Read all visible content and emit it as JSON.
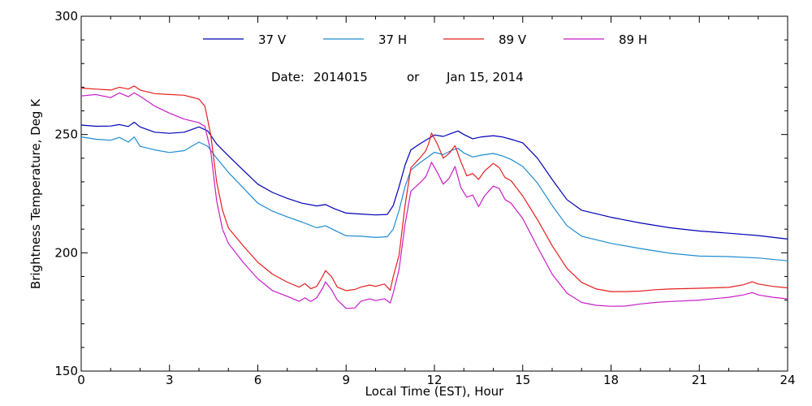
{
  "chart_data": {
    "type": "line",
    "title": "",
    "subtitle": {
      "date_prefix": "Date:",
      "date_code": "2014015",
      "conj": "or",
      "date_text": "Jan 15, 2014"
    },
    "xlabel": "Local Time (EST), Hour",
    "ylabel": "Brightness Temperature, Deg K",
    "xlim": [
      0,
      24
    ],
    "ylim": [
      150,
      300
    ],
    "xticks": [
      0,
      3,
      6,
      9,
      12,
      15,
      18,
      21,
      24
    ],
    "yticks": [
      150,
      200,
      250,
      300
    ],
    "xtick_labels": [
      "0",
      "3",
      "6",
      "9",
      "12",
      "15",
      "18",
      "21",
      "24"
    ],
    "ytick_labels": [
      "150",
      "200",
      "250",
      "300"
    ],
    "grid": false,
    "legend_position": "top",
    "series": [
      {
        "name": "37 V",
        "color": "#0000b4",
        "points": [
          [
            0,
            254
          ],
          [
            0.5,
            253.5
          ],
          [
            1,
            253.6
          ],
          [
            1.3,
            254.2
          ],
          [
            1.6,
            253.4
          ],
          [
            1.8,
            255.2
          ],
          [
            2,
            253.2
          ],
          [
            2.5,
            251
          ],
          [
            3,
            250.5
          ],
          [
            3.5,
            251
          ],
          [
            4,
            253.2
          ],
          [
            4.3,
            251.5
          ],
          [
            4.6,
            246
          ],
          [
            5,
            241
          ],
          [
            5.5,
            235
          ],
          [
            6,
            229
          ],
          [
            6.5,
            225.5
          ],
          [
            7,
            223
          ],
          [
            7.5,
            221
          ],
          [
            8,
            219.8
          ],
          [
            8.3,
            220.4
          ],
          [
            8.6,
            218.6
          ],
          [
            9,
            216.8
          ],
          [
            9.5,
            216.4
          ],
          [
            10,
            216
          ],
          [
            10.4,
            216.2
          ],
          [
            10.6,
            220
          ],
          [
            10.8,
            228
          ],
          [
            11,
            237
          ],
          [
            11.2,
            243.5
          ],
          [
            11.5,
            246
          ],
          [
            12,
            249.8
          ],
          [
            12.3,
            249.2
          ],
          [
            12.6,
            250.6
          ],
          [
            12.8,
            251.5
          ],
          [
            13,
            250
          ],
          [
            13.3,
            248.2
          ],
          [
            13.6,
            249
          ],
          [
            14,
            249.5
          ],
          [
            14.3,
            249
          ],
          [
            14.6,
            248
          ],
          [
            15,
            246.5
          ],
          [
            15.5,
            240
          ],
          [
            16,
            231
          ],
          [
            16.5,
            222.5
          ],
          [
            17,
            218
          ],
          [
            18,
            215
          ],
          [
            19,
            212.6
          ],
          [
            20,
            210.6
          ],
          [
            21,
            209.2
          ],
          [
            22,
            208.3
          ],
          [
            23,
            207.3
          ],
          [
            24,
            205.8
          ]
        ]
      },
      {
        "name": "37 H",
        "color": "#1e8cd2",
        "points": [
          [
            0,
            249
          ],
          [
            0.5,
            248
          ],
          [
            1,
            247.6
          ],
          [
            1.3,
            248.8
          ],
          [
            1.6,
            246.8
          ],
          [
            1.8,
            249
          ],
          [
            2,
            245
          ],
          [
            2.5,
            243.5
          ],
          [
            3,
            242.4
          ],
          [
            3.5,
            243.2
          ],
          [
            4,
            246.8
          ],
          [
            4.3,
            245
          ],
          [
            4.6,
            240
          ],
          [
            5,
            234
          ],
          [
            5.5,
            227.5
          ],
          [
            6,
            221
          ],
          [
            6.5,
            217.6
          ],
          [
            7,
            215.2
          ],
          [
            7.5,
            213
          ],
          [
            8,
            210.6
          ],
          [
            8.3,
            211.4
          ],
          [
            8.6,
            209.6
          ],
          [
            9,
            207.2
          ],
          [
            9.5,
            207
          ],
          [
            10,
            206.5
          ],
          [
            10.4,
            206.8
          ],
          [
            10.6,
            210
          ],
          [
            10.8,
            218
          ],
          [
            11,
            228
          ],
          [
            11.2,
            235
          ],
          [
            11.5,
            238
          ],
          [
            12,
            242.5
          ],
          [
            12.3,
            241.5
          ],
          [
            12.6,
            243.4
          ],
          [
            12.8,
            244.2
          ],
          [
            13,
            242.2
          ],
          [
            13.3,
            240.5
          ],
          [
            13.6,
            241.3
          ],
          [
            14,
            242
          ],
          [
            14.3,
            241
          ],
          [
            14.6,
            239.5
          ],
          [
            15,
            236.5
          ],
          [
            15.5,
            229.5
          ],
          [
            16,
            220
          ],
          [
            16.5,
            211.5
          ],
          [
            17,
            207
          ],
          [
            18,
            204
          ],
          [
            19,
            201.8
          ],
          [
            20,
            199.8
          ],
          [
            21,
            198.6
          ],
          [
            22,
            198.4
          ],
          [
            23,
            197.8
          ],
          [
            24,
            196.6
          ]
        ]
      },
      {
        "name": "89 V",
        "color": "#e61e1e",
        "points": [
          [
            0,
            269.6
          ],
          [
            0.5,
            269.2
          ],
          [
            1,
            268.8
          ],
          [
            1.3,
            270
          ],
          [
            1.6,
            269.2
          ],
          [
            1.8,
            270.5
          ],
          [
            2,
            268.8
          ],
          [
            2.5,
            267.3
          ],
          [
            3,
            266.9
          ],
          [
            3.5,
            266.6
          ],
          [
            4,
            265
          ],
          [
            4.2,
            262
          ],
          [
            4.4,
            250
          ],
          [
            4.6,
            230
          ],
          [
            4.8,
            218
          ],
          [
            5,
            210.5
          ],
          [
            5.5,
            203
          ],
          [
            6,
            196
          ],
          [
            6.5,
            191
          ],
          [
            7,
            187.6
          ],
          [
            7.4,
            185.5
          ],
          [
            7.6,
            187
          ],
          [
            7.8,
            184.8
          ],
          [
            8,
            185.8
          ],
          [
            8.2,
            190
          ],
          [
            8.3,
            192.5
          ],
          [
            8.5,
            190
          ],
          [
            8.7,
            185.5
          ],
          [
            9,
            184
          ],
          [
            9.3,
            184.5
          ],
          [
            9.5,
            185.5
          ],
          [
            9.8,
            186.4
          ],
          [
            10,
            185.8
          ],
          [
            10.3,
            186.8
          ],
          [
            10.5,
            184.2
          ],
          [
            10.6,
            190
          ],
          [
            10.8,
            199
          ],
          [
            11,
            220
          ],
          [
            11.2,
            236
          ],
          [
            11.5,
            240
          ],
          [
            11.7,
            243
          ],
          [
            11.8,
            246
          ],
          [
            11.9,
            250.6
          ],
          [
            12.1,
            246
          ],
          [
            12.3,
            240
          ],
          [
            12.5,
            242
          ],
          [
            12.7,
            245.3
          ],
          [
            12.9,
            238.5
          ],
          [
            13.1,
            232.5
          ],
          [
            13.3,
            233.5
          ],
          [
            13.5,
            231
          ],
          [
            13.7,
            234.5
          ],
          [
            14,
            237.8
          ],
          [
            14.2,
            236
          ],
          [
            14.4,
            231.8
          ],
          [
            14.6,
            230.5
          ],
          [
            15,
            224
          ],
          [
            15.5,
            214
          ],
          [
            16,
            203
          ],
          [
            16.5,
            193.5
          ],
          [
            17,
            187.5
          ],
          [
            17.5,
            184.7
          ],
          [
            18,
            183.6
          ],
          [
            18.5,
            183.6
          ],
          [
            19,
            183.8
          ],
          [
            19.5,
            184.4
          ],
          [
            20,
            184.7
          ],
          [
            21,
            185
          ],
          [
            22,
            185.4
          ],
          [
            22.5,
            186.5
          ],
          [
            22.8,
            187.8
          ],
          [
            23,
            186.8
          ],
          [
            23.5,
            185.8
          ],
          [
            24,
            185.2
          ]
        ]
      },
      {
        "name": "89 H",
        "color": "#c81ec8",
        "points": [
          [
            0,
            266.3
          ],
          [
            0.5,
            266.9
          ],
          [
            1,
            265.6
          ],
          [
            1.3,
            267.6
          ],
          [
            1.6,
            266
          ],
          [
            1.8,
            267.6
          ],
          [
            2,
            266.2
          ],
          [
            2.5,
            262
          ],
          [
            3,
            259
          ],
          [
            3.5,
            256.5
          ],
          [
            4,
            255
          ],
          [
            4.2,
            253.5
          ],
          [
            4.4,
            243
          ],
          [
            4.6,
            222
          ],
          [
            4.8,
            210
          ],
          [
            5,
            204
          ],
          [
            5.5,
            196
          ],
          [
            6,
            189
          ],
          [
            6.5,
            184
          ],
          [
            7,
            181.6
          ],
          [
            7.4,
            179.5
          ],
          [
            7.6,
            181
          ],
          [
            7.8,
            179.4
          ],
          [
            8,
            181
          ],
          [
            8.2,
            185
          ],
          [
            8.3,
            187.7
          ],
          [
            8.5,
            184.5
          ],
          [
            8.7,
            180
          ],
          [
            9,
            176.5
          ],
          [
            9.3,
            176.7
          ],
          [
            9.5,
            179.5
          ],
          [
            9.8,
            180.5
          ],
          [
            10,
            179.8
          ],
          [
            10.3,
            180.6
          ],
          [
            10.5,
            178.8
          ],
          [
            10.6,
            183
          ],
          [
            10.8,
            193
          ],
          [
            11,
            212
          ],
          [
            11.2,
            226
          ],
          [
            11.5,
            229.5
          ],
          [
            11.7,
            232
          ],
          [
            11.8,
            235
          ],
          [
            11.9,
            238.3
          ],
          [
            12.1,
            234
          ],
          [
            12.3,
            229
          ],
          [
            12.5,
            231.5
          ],
          [
            12.7,
            236.5
          ],
          [
            12.9,
            227.5
          ],
          [
            13.1,
            223.5
          ],
          [
            13.3,
            224.5
          ],
          [
            13.5,
            219.5
          ],
          [
            13.7,
            224
          ],
          [
            14,
            228.2
          ],
          [
            14.2,
            227.2
          ],
          [
            14.4,
            222.5
          ],
          [
            14.6,
            221
          ],
          [
            15,
            214.5
          ],
          [
            15.5,
            202.5
          ],
          [
            16,
            191
          ],
          [
            16.5,
            183
          ],
          [
            17,
            179
          ],
          [
            17.5,
            177.8
          ],
          [
            18,
            177.4
          ],
          [
            18.5,
            177.5
          ],
          [
            19,
            178.4
          ],
          [
            19.5,
            179
          ],
          [
            20,
            179.4
          ],
          [
            21,
            180
          ],
          [
            22,
            181.2
          ],
          [
            22.5,
            182.2
          ],
          [
            22.8,
            183.2
          ],
          [
            23,
            182.2
          ],
          [
            23.5,
            181.2
          ],
          [
            24,
            180.5
          ]
        ]
      }
    ]
  }
}
